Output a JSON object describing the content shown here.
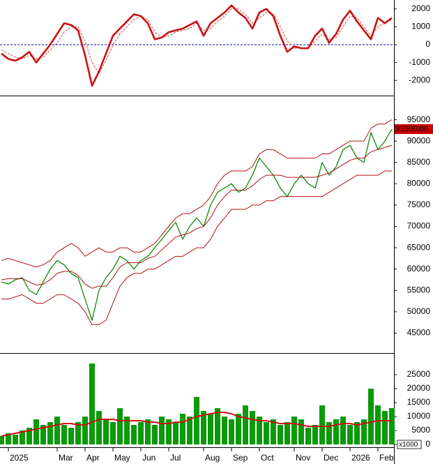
{
  "chart_data": [
    {
      "type": "line",
      "ylim": [
        -2500,
        2500
      ],
      "yticks": [
        -2000,
        -1000,
        0,
        1000,
        2000
      ],
      "hline": 0,
      "hline_color": "#0000aa",
      "series": [
        {
          "color": "#cc1111",
          "width": 2.6,
          "values": [
            -500,
            -800,
            -900,
            -700,
            -400,
            -1000,
            -500,
            0,
            600,
            1200,
            1100,
            800,
            -600,
            -2300,
            -1500,
            -500,
            500,
            900,
            1300,
            1700,
            1600,
            1200,
            300,
            400,
            700,
            800,
            900,
            1100,
            1300,
            500,
            1200,
            1500,
            1800,
            2200,
            1800,
            1500,
            900,
            1800,
            2000,
            1600,
            500,
            -400,
            -100,
            -200,
            -200,
            500,
            900,
            100,
            600,
            1400,
            1900,
            1300,
            800,
            300,
            1500,
            1200,
            1500
          ]
        },
        {
          "color": "#cc1111",
          "width": 0.8,
          "dash": true,
          "values": [
            -300,
            -500,
            -700,
            -800,
            -600,
            -800,
            -700,
            -300,
            100,
            700,
            1000,
            1000,
            200,
            -1000,
            -1600,
            -900,
            0,
            600,
            1000,
            1400,
            1600,
            1400,
            700,
            400,
            500,
            700,
            800,
            900,
            1200,
            800,
            900,
            1300,
            1600,
            2000,
            2000,
            1700,
            1200,
            1500,
            1800,
            1700,
            1000,
            200,
            -200,
            -200,
            -200,
            200,
            600,
            300,
            400,
            1000,
            1600,
            1500,
            1000,
            500,
            1000,
            1200,
            1400
          ]
        }
      ]
    },
    {
      "type": "line",
      "ylim": [
        40000,
        100000
      ],
      "yticks": [
        45000,
        50000,
        55000,
        60000,
        65000,
        70000,
        75000,
        80000,
        85000,
        90000,
        95000
      ],
      "last_price": {
        "value": 92800,
        "label": "92800.00"
      },
      "last_price_color": "#cc0000",
      "series": [
        {
          "color": "#0a8a0a",
          "width": 1.3,
          "values": [
            57000,
            56500,
            57500,
            58000,
            55000,
            54000,
            57000,
            60000,
            62000,
            61000,
            59000,
            58000,
            53000,
            48000,
            55000,
            58000,
            60000,
            63000,
            62000,
            60000,
            62000,
            63000,
            65000,
            67000,
            69000,
            71000,
            67000,
            70000,
            72000,
            70000,
            75000,
            78000,
            79000,
            80000,
            78000,
            79000,
            82000,
            86000,
            84000,
            82000,
            79000,
            77000,
            80000,
            82000,
            80000,
            79000,
            85000,
            82000,
            84000,
            88000,
            89000,
            86000,
            85000,
            92000,
            88000,
            90000,
            92800
          ]
        },
        {
          "color": "#b01010",
          "width": 1,
          "values": [
            62000,
            62500,
            62000,
            61500,
            61000,
            60500,
            61000,
            62000,
            64000,
            65000,
            66000,
            65000,
            63000,
            64000,
            65000,
            64000,
            64000,
            65000,
            65000,
            64000,
            64000,
            65000,
            66000,
            68000,
            70000,
            72000,
            73000,
            73000,
            74000,
            75000,
            77000,
            80000,
            82000,
            83000,
            83000,
            83000,
            84000,
            87000,
            88000,
            88000,
            87000,
            86000,
            86000,
            86000,
            86000,
            86000,
            87000,
            87000,
            88000,
            89000,
            90000,
            90000,
            90000,
            93000,
            94000,
            94000,
            95000
          ]
        },
        {
          "color": "#b01010",
          "width": 1,
          "values": [
            57500,
            57750,
            57750,
            57750,
            57000,
            56250,
            56500,
            57500,
            59000,
            59500,
            59500,
            58500,
            56500,
            55500,
            56000,
            56000,
            58000,
            60500,
            61500,
            61500,
            61500,
            62500,
            63000,
            64500,
            66000,
            67500,
            68000,
            68500,
            69500,
            70000,
            72000,
            75000,
            77000,
            78500,
            78500,
            78500,
            79500,
            81000,
            82000,
            82000,
            82000,
            81500,
            81500,
            81500,
            81500,
            81500,
            82000,
            82500,
            83500,
            84500,
            85500,
            86000,
            86000,
            87500,
            88000,
            88500,
            89000
          ]
        },
        {
          "color": "#b01010",
          "width": 1,
          "values": [
            53000,
            53000,
            53500,
            54000,
            53000,
            52000,
            52000,
            53000,
            54000,
            54000,
            53000,
            52000,
            50000,
            47000,
            47000,
            48000,
            52000,
            56000,
            58000,
            59000,
            59000,
            60000,
            60000,
            61000,
            62000,
            63000,
            63000,
            64000,
            65000,
            65000,
            67000,
            70000,
            72000,
            74000,
            74000,
            74000,
            75000,
            75000,
            76000,
            76000,
            77000,
            77000,
            77000,
            77000,
            77000,
            77000,
            77000,
            78000,
            79000,
            80000,
            81000,
            82000,
            82000,
            82000,
            82000,
            83000,
            83000
          ]
        }
      ]
    },
    {
      "type": "bar",
      "ylim": [
        0,
        32000
      ],
      "yticks": [
        0,
        5000,
        10000,
        15000,
        20000,
        25000
      ],
      "unit_label": "x1000",
      "categories": [
        null,
        "2025",
        null,
        null,
        null,
        null,
        null,
        null,
        "Mar",
        null,
        null,
        null,
        "Apr",
        null,
        null,
        null,
        "May",
        null,
        null,
        null,
        "Jun",
        null,
        null,
        null,
        "Jul",
        null,
        null,
        null,
        null,
        "Aug",
        null,
        null,
        null,
        "Sep",
        null,
        null,
        null,
        "Oct",
        null,
        null,
        null,
        null,
        "Nov",
        null,
        null,
        null,
        "Dec",
        null,
        null,
        null,
        "2026",
        null,
        null,
        null,
        "Feb",
        null,
        null
      ],
      "series": [
        {
          "style": "bar",
          "color": "#0a9a0a",
          "values": [
            3000,
            4000,
            3500,
            5000,
            6000,
            9000,
            7000,
            8000,
            10000,
            7000,
            6000,
            8000,
            10000,
            29000,
            12000,
            9000,
            8000,
            13000,
            10000,
            7000,
            8000,
            9000,
            7000,
            10000,
            9000,
            8000,
            11000,
            10000,
            17000,
            12000,
            11000,
            13000,
            10000,
            9000,
            11000,
            14000,
            12000,
            10000,
            8000,
            9000,
            7000,
            8000,
            10000,
            9000,
            6000,
            7000,
            14000,
            8000,
            9000,
            10000,
            7000,
            8000,
            9000,
            20000,
            14000,
            12000,
            13000
          ]
        },
        {
          "style": "line",
          "color": "#cc1111",
          "width": 2,
          "values": [
            3000,
            3500,
            4000,
            4500,
            5000,
            5500,
            6000,
            6500,
            7000,
            7500,
            7500,
            7000,
            7000,
            8000,
            9000,
            9000,
            9000,
            8500,
            8500,
            8500,
            8500,
            8000,
            8000,
            7500,
            7500,
            8000,
            8000,
            9000,
            10000,
            10500,
            11000,
            11500,
            11500,
            11000,
            10000,
            9500,
            9000,
            8500,
            8500,
            8000,
            7500,
            7500,
            7500,
            7000,
            6500,
            6500,
            6500,
            6500,
            7000,
            7500,
            7500,
            7000,
            7500,
            8000,
            8500,
            8500,
            8500
          ]
        }
      ]
    }
  ]
}
